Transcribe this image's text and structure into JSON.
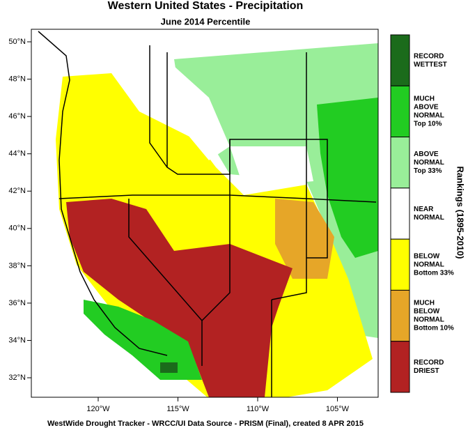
{
  "map": {
    "title": "Western United States - Precipitation",
    "subtitle": "June 2014 Percentile",
    "lat_ticks": [
      {
        "value": 50,
        "label": "50°N"
      },
      {
        "value": 48,
        "label": "48°N"
      },
      {
        "value": 46,
        "label": "46°N"
      },
      {
        "value": 44,
        "label": "44°N"
      },
      {
        "value": 42,
        "label": "42°N"
      },
      {
        "value": 40,
        "label": "40°N"
      },
      {
        "value": 38,
        "label": "38°N"
      },
      {
        "value": 36,
        "label": "36°N"
      },
      {
        "value": 34,
        "label": "34°N"
      },
      {
        "value": 32,
        "label": "32°N"
      }
    ],
    "lon_ticks": [
      {
        "value": 120,
        "label": "120°W"
      },
      {
        "value": 115,
        "label": "115°W"
      },
      {
        "value": 110,
        "label": "110°W"
      },
      {
        "value": 105,
        "label": "105°W"
      }
    ],
    "legend_title": "Rankings (1895-2010)",
    "legend": [
      {
        "lines": [
          "RECORD",
          "WETTEST"
        ],
        "color": "#1b6b1b"
      },
      {
        "lines": [
          "MUCH",
          "ABOVE",
          "NORMAL",
          "Top 10%"
        ],
        "color": "#22cc22"
      },
      {
        "lines": [
          "ABOVE",
          "NORMAL",
          "Top 33%"
        ],
        "color": "#99ee99"
      },
      {
        "lines": [
          "NEAR",
          "NORMAL"
        ],
        "color": "#ffffff"
      },
      {
        "lines": [
          "BELOW",
          "NORMAL",
          "Bottom 33%"
        ],
        "color": "#ffff00"
      },
      {
        "lines": [
          "MUCH",
          "BELOW",
          "NORMAL",
          "Bottom 10%"
        ],
        "color": "#e6a628"
      },
      {
        "lines": [
          "RECORD",
          "DRIEST"
        ],
        "color": "#b22222"
      }
    ],
    "footer": "WestWide Drought Tracker - WRCC/UI  Data Source - PRISM (Final), created  8 APR 2015"
  }
}
